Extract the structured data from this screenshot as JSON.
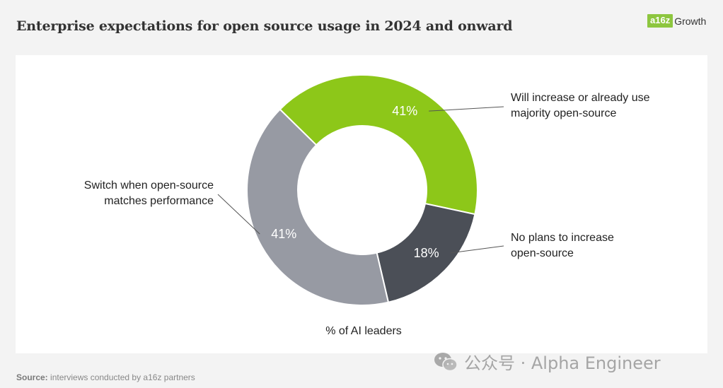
{
  "title": "Enterprise expectations for open source usage in 2024 and onward",
  "logo": {
    "mark": "a16z",
    "text": "Growth"
  },
  "chart_data": {
    "type": "pie",
    "variant": "donut",
    "title": "Enterprise expectations for open source usage in 2024 and onward",
    "caption": "% of AI leaders",
    "slices": [
      {
        "label": "Will increase or already use majority open-source",
        "label_lines": [
          "Will increase or already use",
          "majority open-source"
        ],
        "value": 41,
        "display": "41%",
        "color": "#8dc719"
      },
      {
        "label": "No plans to increase open-source",
        "label_lines": [
          "No plans to increase",
          "open-source"
        ],
        "value": 18,
        "display": "18%",
        "color": "#4b4f57"
      },
      {
        "label": "Switch when open-source matches performance",
        "label_lines": [
          "Switch when open-source",
          "matches performance"
        ],
        "value": 41,
        "display": "41%",
        "color": "#979aa3"
      }
    ]
  },
  "source": {
    "prefix": "Source:",
    "text": " interviews conducted by a16z partners"
  },
  "watermark": "公众号 · Alpha Engineer"
}
